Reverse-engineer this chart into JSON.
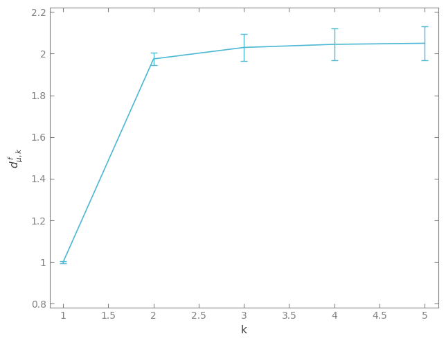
{
  "x": [
    1,
    2,
    3,
    4,
    5
  ],
  "y": [
    1.0,
    1.975,
    2.03,
    2.045,
    2.05
  ],
  "yerr": [
    0.005,
    0.03,
    0.065,
    0.075,
    0.08
  ],
  "line_color": "#4db8d4",
  "xlabel": "k",
  "xlim": [
    0.85,
    5.15
  ],
  "ylim": [
    0.78,
    2.22
  ],
  "xticks": [
    1.0,
    1.5,
    2.0,
    2.5,
    3.0,
    3.5,
    4.0,
    4.5,
    5.0
  ],
  "yticks": [
    0.8,
    1.0,
    1.2,
    1.4,
    1.6,
    1.8,
    2.0,
    2.2
  ],
  "linewidth": 1.2,
  "capsize": 3.5,
  "elinewidth": 1.0,
  "spine_color": "#808080",
  "tick_color": "#808080",
  "label_color": "#404040",
  "background_color": "#ffffff",
  "tick_labelsize": 10,
  "axis_labelsize": 11
}
